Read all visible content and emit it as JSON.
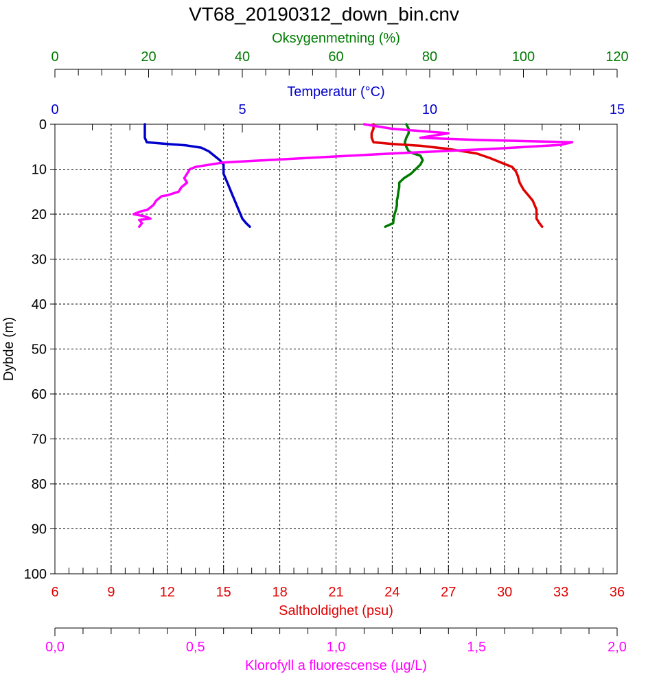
{
  "title": "VT68_20190312_down_bin.cnv",
  "colors": {
    "oxygen": "#007a00",
    "temperature": "#0000cc",
    "salinity": "#e00000",
    "fluorescence": "#ff00ff",
    "axis": "#000000",
    "grid": "#000000"
  },
  "chart_data": {
    "type": "line",
    "title": "VT68_20190312_down_bin.cnv",
    "grid": true,
    "y_axis": {
      "label": "Dybde (m)",
      "range": [
        0,
        100
      ],
      "inverted": true,
      "ticks": [
        0,
        10,
        20,
        30,
        40,
        50,
        60,
        70,
        80,
        90,
        100
      ]
    },
    "x_axes": [
      {
        "id": "oxygen",
        "label": "Oksygenmetning (%)",
        "position": "top",
        "range": [
          0,
          120
        ],
        "ticks": [
          "0",
          "20",
          "40",
          "60",
          "80",
          "100",
          "120"
        ]
      },
      {
        "id": "temperature",
        "label": "Temperatur (°C)",
        "position": "top",
        "range": [
          0,
          15
        ],
        "ticks": [
          "0",
          "5",
          "10",
          "15"
        ]
      },
      {
        "id": "salinity",
        "label": "Saltholdighet (psu)",
        "position": "bottom",
        "range": [
          6,
          36
        ],
        "ticks": [
          "6",
          "9",
          "12",
          "15",
          "18",
          "21",
          "24",
          "27",
          "30",
          "33",
          "36"
        ]
      },
      {
        "id": "fluorescence",
        "label": "Klorofyll a fluorescense (µg/L)",
        "position": "bottom",
        "range": [
          0,
          2
        ],
        "ticks": [
          "0,0",
          "0,5",
          "1,0",
          "1,5",
          "2,0"
        ]
      }
    ],
    "series": [
      {
        "name": "Oksygenmetning (%)",
        "axis": "oxygen",
        "points": [
          [
            75.0,
            0
          ],
          [
            75.5,
            1
          ],
          [
            75.5,
            2
          ],
          [
            75.0,
            3
          ],
          [
            74.7,
            4
          ],
          [
            75.0,
            5
          ],
          [
            75.5,
            6
          ],
          [
            76.5,
            6.5
          ],
          [
            78.0,
            7
          ],
          [
            78.5,
            8
          ],
          [
            78.0,
            9
          ],
          [
            77.0,
            10
          ],
          [
            76.0,
            11
          ],
          [
            74.5,
            12
          ],
          [
            73.5,
            13
          ],
          [
            73.5,
            14
          ],
          [
            73.3,
            15
          ],
          [
            73.2,
            16
          ],
          [
            73.0,
            17
          ],
          [
            73.0,
            18
          ],
          [
            72.8,
            19
          ],
          [
            72.5,
            20
          ],
          [
            72.3,
            21
          ],
          [
            72.2,
            22
          ],
          [
            70.5,
            22.8
          ]
        ]
      },
      {
        "name": "Temperatur (°C)",
        "axis": "temperature",
        "points": [
          [
            2.4,
            0
          ],
          [
            2.4,
            1
          ],
          [
            2.4,
            2
          ],
          [
            2.4,
            3
          ],
          [
            2.45,
            4
          ],
          [
            3.0,
            4.4
          ],
          [
            3.5,
            4.7
          ],
          [
            3.9,
            5.2
          ],
          [
            4.1,
            6
          ],
          [
            4.25,
            7
          ],
          [
            4.4,
            8
          ],
          [
            4.5,
            9
          ],
          [
            4.5,
            10
          ],
          [
            4.5,
            11
          ],
          [
            4.55,
            12
          ],
          [
            4.6,
            13
          ],
          [
            4.65,
            14
          ],
          [
            4.7,
            15
          ],
          [
            4.75,
            16
          ],
          [
            4.8,
            17
          ],
          [
            4.85,
            18
          ],
          [
            4.9,
            19
          ],
          [
            4.95,
            20
          ],
          [
            5.0,
            21
          ],
          [
            5.1,
            22
          ],
          [
            5.2,
            22.8
          ]
        ]
      },
      {
        "name": "Saltholdighet (psu)",
        "axis": "salinity",
        "points": [
          [
            23.0,
            0
          ],
          [
            23.0,
            1
          ],
          [
            22.9,
            2
          ],
          [
            22.9,
            3
          ],
          [
            23.0,
            4
          ],
          [
            24.0,
            4.4
          ],
          [
            25.5,
            4.8
          ],
          [
            27.0,
            5.5
          ],
          [
            28.5,
            6.5
          ],
          [
            29.2,
            7.5
          ],
          [
            29.8,
            8.5
          ],
          [
            30.4,
            9.5
          ],
          [
            30.6,
            10.5
          ],
          [
            30.7,
            11.5
          ],
          [
            30.8,
            13
          ],
          [
            31.0,
            14.5
          ],
          [
            31.3,
            16
          ],
          [
            31.5,
            17
          ],
          [
            31.6,
            18
          ],
          [
            31.7,
            19
          ],
          [
            31.7,
            20
          ],
          [
            31.7,
            21
          ],
          [
            31.85,
            22
          ],
          [
            32.0,
            22.8
          ]
        ]
      },
      {
        "name": "Klorofyll a fluorescense (µg/L)",
        "axis": "fluorescence",
        "points": [
          [
            1.1,
            0
          ],
          [
            1.2,
            1
          ],
          [
            1.4,
            2
          ],
          [
            1.3,
            3
          ],
          [
            1.5,
            3.5
          ],
          [
            1.84,
            4
          ],
          [
            1.8,
            4.6
          ],
          [
            1.55,
            5.5
          ],
          [
            1.2,
            6.5
          ],
          [
            0.9,
            7.5
          ],
          [
            0.6,
            8.5
          ],
          [
            0.5,
            9.5
          ],
          [
            0.48,
            10
          ],
          [
            0.47,
            11
          ],
          [
            0.46,
            12
          ],
          [
            0.47,
            13
          ],
          [
            0.45,
            14
          ],
          [
            0.44,
            15
          ],
          [
            0.4,
            15.8
          ],
          [
            0.38,
            16
          ],
          [
            0.36,
            17
          ],
          [
            0.35,
            18
          ],
          [
            0.33,
            19
          ],
          [
            0.3,
            19.5
          ],
          [
            0.28,
            20
          ],
          [
            0.32,
            20.5
          ],
          [
            0.34,
            21
          ],
          [
            0.3,
            21.3
          ],
          [
            0.31,
            22
          ],
          [
            0.3,
            22.8
          ]
        ]
      }
    ]
  }
}
